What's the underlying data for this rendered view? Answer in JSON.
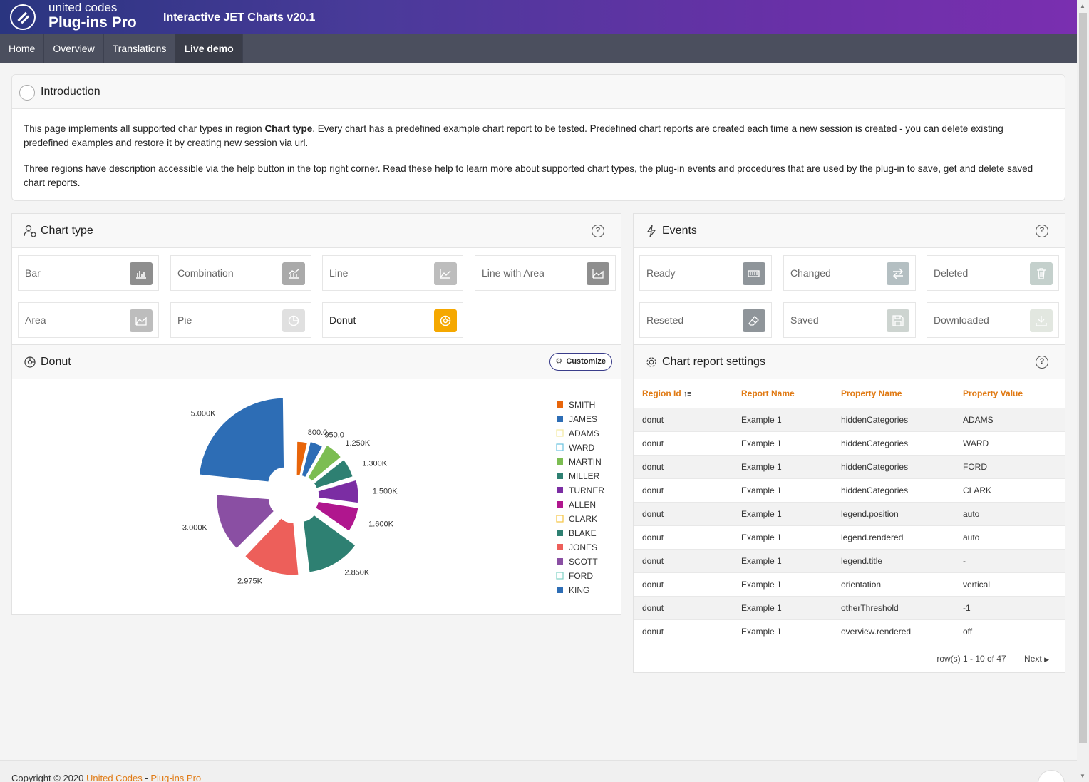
{
  "header": {
    "brand_top": "united codes",
    "brand_bottom": "Plug-ins Pro",
    "app_title": "Interactive JET Charts v20.1"
  },
  "nav": {
    "tabs": [
      {
        "label": "Home"
      },
      {
        "label": "Overview"
      },
      {
        "label": "Translations"
      },
      {
        "label": "Live demo",
        "active": true
      }
    ]
  },
  "intro": {
    "title": "Introduction",
    "p1_before": "This page implements all supported char types in region ",
    "p1_bold": "Chart type",
    "p1_after": ". Every chart has a predefined example chart report to be tested. Predefined chart reports are created each time a new session is created - you can delete existing predefined examples and restore it by creating new session via url.",
    "p2": "Three regions have description accessible via the help button in the top right corner. Read these help to learn more about supported chart types, the plug-in events and procedures that are used by the plug-in to save, get and delete saved chart reports."
  },
  "chart_type": {
    "title": "Chart type",
    "tiles": [
      {
        "label": "Bar",
        "icon": "bar-chart-icon",
        "color": "#8e8e8e"
      },
      {
        "label": "Combination",
        "icon": "combination-chart-icon",
        "color": "#aaaaaa"
      },
      {
        "label": "Line",
        "icon": "line-chart-icon",
        "color": "#bdbdbd"
      },
      {
        "label": "Line with Area",
        "icon": "line-area-chart-icon",
        "color": "#8e8e8e"
      },
      {
        "label": "Area",
        "icon": "area-chart-icon",
        "color": "#bdbdbd"
      },
      {
        "label": "Pie",
        "icon": "pie-chart-icon",
        "color": "#e0e0e0"
      },
      {
        "label": "Donut",
        "icon": "donut-chart-icon",
        "color": "#f5a800",
        "selected": true
      }
    ]
  },
  "events": {
    "title": "Events",
    "tiles": [
      {
        "label": "Ready",
        "icon": "battery-icon",
        "color": "#8f959a"
      },
      {
        "label": "Changed",
        "icon": "swap-arrows-icon",
        "color": "#b4bfc2"
      },
      {
        "label": "Deleted",
        "icon": "trash-icon",
        "color": "#c4d0cc"
      },
      {
        "label": "Reseted",
        "icon": "eraser-icon",
        "color": "#8f959a"
      },
      {
        "label": "Saved",
        "icon": "floppy-disk-icon",
        "color": "#cdd4d0"
      },
      {
        "label": "Downloaded",
        "icon": "download-icon",
        "color": "#e2e7e0"
      }
    ]
  },
  "donut": {
    "title": "Donut",
    "customize_label": "Customize"
  },
  "chart_data": {
    "type": "pie",
    "categories": [
      "SMITH",
      "JAMES",
      "ADAMS",
      "WARD",
      "MARTIN",
      "MILLER",
      "TURNER",
      "ALLEN",
      "CLARK",
      "BLAKE",
      "JONES",
      "SCOTT",
      "FORD",
      "KING"
    ],
    "values": [
      800,
      950,
      null,
      null,
      1250,
      1300,
      1500,
      1600,
      null,
      2850,
      2975,
      3000,
      null,
      5000
    ],
    "data_labels": [
      "800.0",
      "950.0",
      "",
      "",
      "1.250K",
      "1.300K",
      "1.500K",
      "1.600K",
      "",
      "2.850K",
      "2.975K",
      "3.000K",
      "",
      "5.000K"
    ],
    "colors": [
      "#e8650a",
      "#2d6db5",
      "#f3e8a0",
      "#6bc3e0",
      "#7cbd52",
      "#2e8072",
      "#7b2da3",
      "#b0168e",
      "#f5c542",
      "#2e8072",
      "#ed5f5a",
      "#8a4fa3",
      "#7fd1c4",
      "#2d6db5"
    ],
    "hidden": [
      "ADAMS",
      "WARD",
      "CLARK",
      "FORD"
    ],
    "legend_position": "right"
  },
  "settings": {
    "title": "Chart report settings",
    "columns": [
      "Region Id",
      "Report Name",
      "Property Name",
      "Property Value"
    ],
    "rows": [
      [
        "donut",
        "Example 1",
        "hiddenCategories",
        "ADAMS"
      ],
      [
        "donut",
        "Example 1",
        "hiddenCategories",
        "WARD"
      ],
      [
        "donut",
        "Example 1",
        "hiddenCategories",
        "FORD"
      ],
      [
        "donut",
        "Example 1",
        "hiddenCategories",
        "CLARK"
      ],
      [
        "donut",
        "Example 1",
        "legend.position",
        "auto"
      ],
      [
        "donut",
        "Example 1",
        "legend.rendered",
        "auto"
      ],
      [
        "donut",
        "Example 1",
        "legend.title",
        "-"
      ],
      [
        "donut",
        "Example 1",
        "orientation",
        "vertical"
      ],
      [
        "donut",
        "Example 1",
        "otherThreshold",
        "-1"
      ],
      [
        "donut",
        "Example 1",
        "overview.rendered",
        "off"
      ]
    ],
    "pagination": "row(s) 1 - 10 of 47",
    "next_label": "Next"
  },
  "footer": {
    "prefix": "Copyright © 2020 ",
    "link1": "United Codes",
    "separator": " - ",
    "link2": "Plug-ins Pro"
  }
}
